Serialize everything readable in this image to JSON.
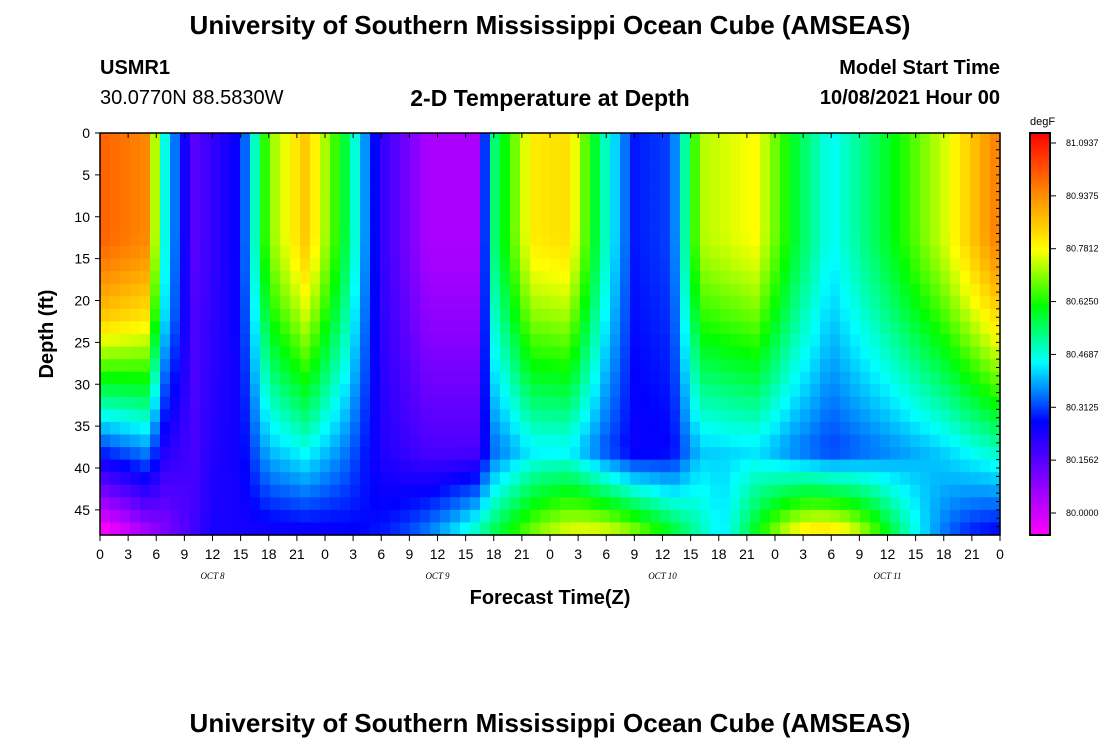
{
  "header": {
    "title": "University of Southern Mississippi Ocean Cube (AMSEAS)",
    "station": "USMR1",
    "coords": "30.0770N  88.5830W",
    "subtitle": "2-D Temperature at Depth",
    "model_label": "Model Start Time",
    "model_time": "10/08/2021 Hour 00"
  },
  "footer": {
    "title": "University of Southern Mississippi Ocean Cube (AMSEAS)"
  },
  "chart_data": {
    "type": "heatmap",
    "xlabel": "Forecast Time(Z)",
    "ylabel": "Depth (ft)",
    "x_tick_labels": [
      "0",
      "3",
      "6",
      "9",
      "12",
      "15",
      "18",
      "21",
      "0",
      "3",
      "6",
      "9",
      "12",
      "15",
      "18",
      "21",
      "0",
      "3",
      "6",
      "9",
      "12",
      "15",
      "18",
      "21",
      "0",
      "3",
      "6",
      "9",
      "12",
      "15",
      "18",
      "21",
      "0"
    ],
    "day_labels": [
      "OCT 8",
      "OCT 9",
      "OCT 10",
      "OCT 11"
    ],
    "y_ticks": [
      0,
      5,
      10,
      15,
      20,
      25,
      30,
      35,
      40,
      45
    ],
    "ylim": [
      0,
      48
    ],
    "xlim_hours": [
      0,
      96
    ],
    "colorbar": {
      "unit": "degF",
      "labels": [
        "81.0937",
        "80.9375",
        "80.7812",
        "80.6250",
        "80.4687",
        "80.3125",
        "80.1562",
        "80.0000"
      ],
      "range": [
        80.0,
        81.0937
      ]
    },
    "surface_temperature_by_hour": [
      {
        "hour": 0,
        "value": 80.98
      },
      {
        "hour": 5,
        "value": 80.93
      },
      {
        "hour": 7,
        "value": 80.47
      },
      {
        "hour": 10,
        "value": 80.2
      },
      {
        "hour": 15,
        "value": 80.31
      },
      {
        "hour": 18,
        "value": 80.7
      },
      {
        "hour": 22,
        "value": 80.85
      },
      {
        "hour": 26,
        "value": 80.6
      },
      {
        "hour": 30,
        "value": 80.25
      },
      {
        "hour": 35,
        "value": 80.1
      },
      {
        "hour": 40,
        "value": 80.1
      },
      {
        "hour": 42,
        "value": 80.55
      },
      {
        "hour": 46,
        "value": 80.8
      },
      {
        "hour": 50,
        "value": 80.82
      },
      {
        "hour": 54,
        "value": 80.5
      },
      {
        "hour": 57,
        "value": 80.32
      },
      {
        "hour": 61,
        "value": 80.35
      },
      {
        "hour": 64,
        "value": 80.73
      },
      {
        "hour": 70,
        "value": 80.78
      },
      {
        "hour": 74,
        "value": 80.6
      },
      {
        "hour": 78,
        "value": 80.47
      },
      {
        "hour": 84,
        "value": 80.6
      },
      {
        "hour": 90,
        "value": 80.75
      },
      {
        "hour": 96,
        "value": 80.95
      }
    ]
  }
}
